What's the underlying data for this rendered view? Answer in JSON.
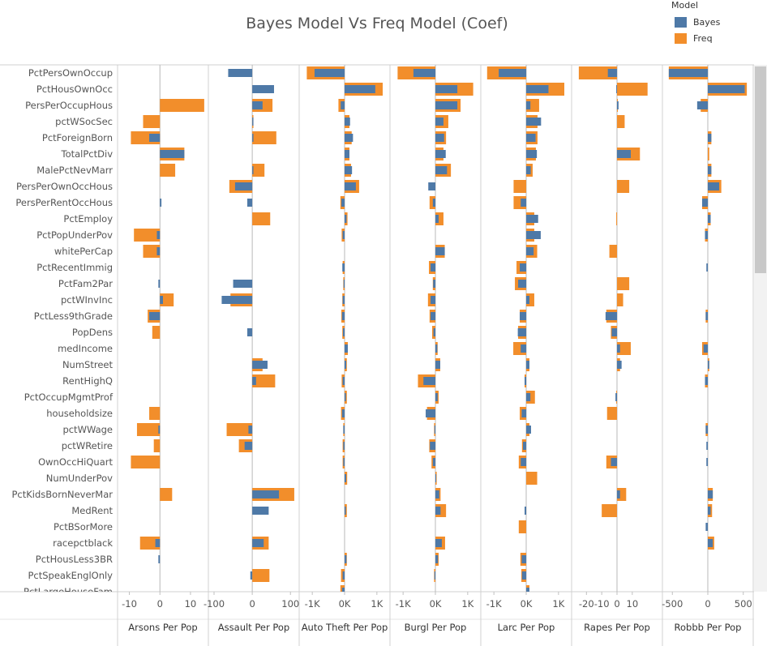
{
  "title": "Bayes Model Vs Freq Model (Coef)",
  "legend": {
    "title": "Model",
    "items": [
      {
        "label": "Bayes",
        "color": "#4e79a7"
      },
      {
        "label": "Freq",
        "color": "#f28e2b"
      }
    ]
  },
  "chart_data": {
    "type": "bar",
    "orientation": "horizontal",
    "categories": [
      "PctPersOwnOccup",
      "PctHousOwnOcc",
      "PersPerOccupHous",
      "pctWSocSec",
      "PctForeignBorn",
      "TotalPctDiv",
      "MalePctNevMarr",
      "PersPerOwnOccHous",
      "PersPerRentOccHous",
      "PctEmploy",
      "PctPopUnderPov",
      "whitePerCap",
      "PctRecentImmig",
      "PctFam2Par",
      "pctWInvInc",
      "PctLess9thGrade",
      "PopDens",
      "medIncome",
      "NumStreet",
      "RentHighQ",
      "PctOccupMgmtProf",
      "householdsize",
      "pctWWage",
      "pctWRetire",
      "OwnOccHiQuart",
      "NumUnderPov",
      "PctKidsBornNeverMar",
      "MedRent",
      "PctBSorMore",
      "racepctblack",
      "PctHousLess3BR",
      "PctSpeakEnglOnly",
      "PctLargeHouseFam"
    ],
    "panels": [
      {
        "label": "Arsons Per Pop",
        "xlim": [
          -12,
          14
        ],
        "ticks": [
          {
            "v": -10,
            "t": "-10"
          },
          {
            "v": 0,
            "t": "0"
          },
          {
            "v": 10,
            "t": "10"
          }
        ],
        "freq": [
          0,
          0,
          14.5,
          -5.5,
          -9.5,
          8,
          5,
          0,
          0,
          0,
          -8.5,
          -5.5,
          0,
          0,
          4.5,
          -4,
          -2.5,
          0,
          0,
          0,
          0,
          -3.5,
          -7.5,
          -2,
          -9.5,
          0,
          4,
          0,
          0,
          -6.5,
          0,
          0,
          0
        ],
        "bayes": [
          0,
          0,
          0,
          0,
          -3.5,
          8,
          0,
          0,
          0.5,
          0,
          -1,
          -1,
          0,
          -0.5,
          1,
          -3.5,
          0,
          0,
          0,
          0,
          0,
          0,
          -0.5,
          0,
          0,
          0,
          0,
          0,
          0,
          -1.5,
          -0.5,
          0,
          0
        ]
      },
      {
        "label": "Assault Per Pop",
        "xlim": [
          -100,
          108
        ],
        "ticks": [
          {
            "v": -100,
            "t": "-100"
          },
          {
            "v": 0,
            "t": "0"
          },
          {
            "v": 100,
            "t": "100"
          }
        ],
        "freq": [
          0,
          0,
          53,
          3,
          63,
          0,
          32,
          -60,
          0,
          47,
          0,
          0,
          0,
          0,
          -57,
          0,
          0,
          0,
          27,
          60,
          0,
          0,
          -67,
          -35,
          0,
          0,
          110,
          0,
          0,
          43,
          0,
          45,
          0
        ],
        "bayes": [
          -63,
          57,
          27,
          3,
          3,
          0,
          3,
          -45,
          -13,
          0,
          0,
          0,
          0,
          -50,
          -80,
          0,
          -13,
          0,
          40,
          10,
          0,
          0,
          -10,
          -20,
          0,
          0,
          70,
          43,
          0,
          30,
          0,
          -5,
          0
        ]
      },
      {
        "label": "Auto Theft Per Pop",
        "xlim": [
          -1230,
          1230
        ],
        "ticks": [
          {
            "v": -1000,
            "t": "-1K"
          },
          {
            "v": 0,
            "t": "0K"
          },
          {
            "v": 1000,
            "t": "1K"
          }
        ],
        "freq": [
          -1170,
          1180,
          -190,
          150,
          220,
          150,
          200,
          450,
          -130,
          90,
          -90,
          0,
          -60,
          -40,
          -70,
          -100,
          -70,
          100,
          70,
          -90,
          70,
          -110,
          -40,
          -60,
          -60,
          80,
          0,
          70,
          0,
          0,
          70,
          -110,
          -130
        ],
        "bayes": [
          -930,
          950,
          -120,
          170,
          260,
          150,
          230,
          350,
          -100,
          60,
          -60,
          0,
          -70,
          -30,
          -60,
          -80,
          -50,
          100,
          50,
          -60,
          40,
          -80,
          -40,
          -40,
          -40,
          50,
          0,
          40,
          0,
          0,
          60,
          -60,
          -80
        ]
      },
      {
        "label": "Burgl Per Pop",
        "xlim": [
          -1230,
          1230
        ],
        "ticks": [
          {
            "v": -1000,
            "t": "-1K"
          },
          {
            "v": 0,
            "t": "0K"
          },
          {
            "v": 1000,
            "t": "1K"
          }
        ],
        "freq": [
          -1170,
          1170,
          780,
          400,
          330,
          250,
          480,
          0,
          -180,
          250,
          0,
          290,
          -200,
          -80,
          -230,
          -180,
          -100,
          70,
          150,
          -540,
          100,
          -260,
          -40,
          -190,
          -120,
          40,
          160,
          330,
          0,
          300,
          100,
          -40,
          0
        ],
        "bayes": [
          -680,
          680,
          680,
          250,
          270,
          320,
          360,
          -220,
          -80,
          100,
          0,
          290,
          -150,
          -70,
          -150,
          -150,
          -60,
          60,
          150,
          -370,
          70,
          -300,
          -30,
          -170,
          -80,
          20,
          120,
          160,
          0,
          200,
          80,
          -30,
          0
        ]
      },
      {
        "label": "Larc Per Pop",
        "xlim": [
          -1230,
          1230
        ],
        "ticks": [
          {
            "v": -1000,
            "t": "-1K"
          },
          {
            "v": 0,
            "t": "0K"
          },
          {
            "v": 1000,
            "t": "1K"
          }
        ],
        "freq": [
          -1210,
          1180,
          400,
          350,
          350,
          300,
          200,
          -390,
          -390,
          250,
          250,
          340,
          -300,
          -350,
          250,
          -200,
          -250,
          -400,
          100,
          -50,
          270,
          -200,
          100,
          -130,
          -230,
          340,
          0,
          0,
          -230,
          0,
          -180,
          -150,
          100
        ],
        "bayes": [
          -850,
          690,
          130,
          460,
          290,
          330,
          140,
          0,
          -170,
          370,
          450,
          230,
          -200,
          -250,
          100,
          -200,
          -260,
          -170,
          100,
          -50,
          130,
          -140,
          150,
          -100,
          -170,
          0,
          0,
          -50,
          0,
          0,
          -140,
          -130,
          100
        ]
      },
      {
        "label": "Rapes Per Pop",
        "xlim": [
          -26,
          26
        ],
        "ticks": [
          {
            "v": -20,
            "t": "-20"
          },
          {
            "v": -10,
            "t": "-10"
          },
          {
            "v": 0,
            "t": "0"
          },
          {
            "v": 10,
            "t": "10"
          }
        ],
        "freq": [
          -25,
          20,
          0.5,
          5,
          0,
          15,
          0,
          8,
          0,
          -0.5,
          0,
          -5,
          0,
          8,
          4,
          -7,
          -4,
          9,
          2,
          0,
          -0.5,
          -6.5,
          0,
          0,
          -7,
          0,
          6,
          -10,
          0,
          0,
          0,
          0,
          0
        ],
        "bayes": [
          -6,
          -0.5,
          1,
          0,
          0,
          9,
          0,
          0,
          0,
          0,
          0,
          0,
          0,
          0,
          0,
          -7.5,
          -3.5,
          2,
          3,
          0,
          -1,
          0,
          0,
          0,
          -4,
          0,
          2,
          0,
          0,
          0,
          0,
          0,
          0
        ]
      },
      {
        "label": "Robbb Per Pop",
        "xlim": [
          -560,
          560
        ],
        "ticks": [
          {
            "v": -500,
            "t": "-500"
          },
          {
            "v": 0,
            "t": "0"
          },
          {
            "v": 500,
            "t": "500"
          }
        ],
        "freq": [
          -550,
          550,
          -100,
          0,
          50,
          20,
          50,
          190,
          -80,
          40,
          -40,
          0,
          0,
          0,
          0,
          -30,
          0,
          -80,
          20,
          -40,
          0,
          0,
          -30,
          0,
          0,
          0,
          70,
          60,
          0,
          90,
          0,
          0,
          0
        ],
        "bayes": [
          -550,
          520,
          -150,
          0,
          50,
          0,
          50,
          160,
          -80,
          40,
          -40,
          0,
          -20,
          0,
          0,
          -30,
          0,
          -60,
          20,
          -40,
          0,
          0,
          -30,
          -20,
          -20,
          0,
          70,
          40,
          -30,
          70,
          0,
          0,
          0
        ]
      }
    ]
  }
}
